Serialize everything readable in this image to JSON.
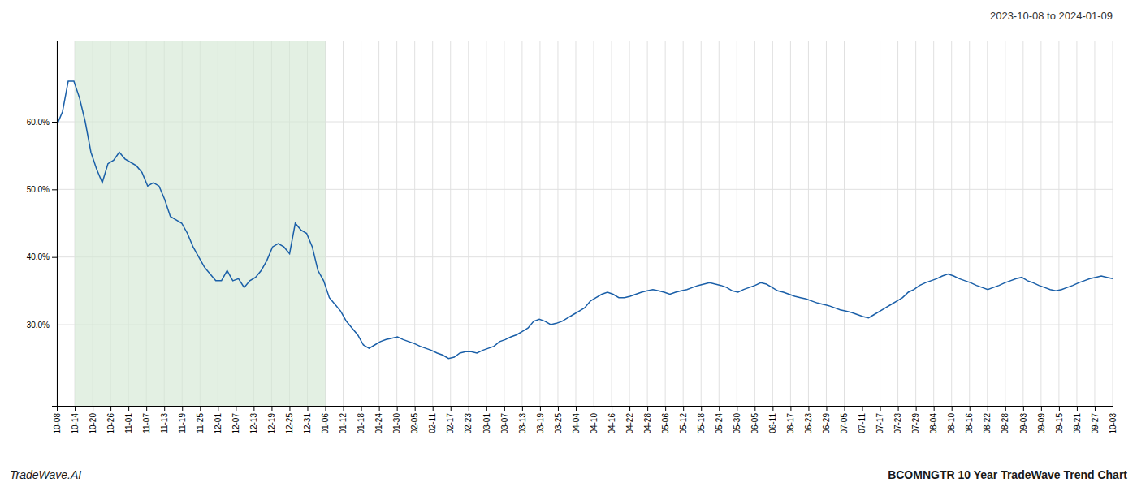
{
  "chart_data": {
    "type": "line",
    "title": "2023-10-08 to 2024-01-09",
    "annotations": [
      "TradeWave.AI",
      "BCOMNGTR 10 Year TradeWave Trend Chart"
    ],
    "color": "#1a5fa8",
    "grid": true,
    "highlight": {
      "x": [
        3.1525,
        47.2881
      ],
      "color": "#d4e8d4"
    },
    "ylim": [
      0.18,
      0.72
    ],
    "yticks": [
      {
        "value": 0.3,
        "label": "30.0%"
      },
      {
        "value": 0.4,
        "label": "40.0%"
      },
      {
        "value": 0.5,
        "label": "50.0%"
      },
      {
        "value": 0.6,
        "label": "60.0%"
      }
    ],
    "xlim": [
      0,
      186
    ],
    "xticks": [
      {
        "value": 0,
        "label": "10-08"
      },
      {
        "value": 3.1525,
        "label": "10-14"
      },
      {
        "value": 6.3051,
        "label": "10-20"
      },
      {
        "value": 9.4576,
        "label": "10-26"
      },
      {
        "value": 12.6102,
        "label": "11-01"
      },
      {
        "value": 15.7627,
        "label": "11-07"
      },
      {
        "value": 18.9153,
        "label": "11-13"
      },
      {
        "value": 22.0678,
        "label": "11-19"
      },
      {
        "value": 25.2203,
        "label": "11-25"
      },
      {
        "value": 28.3729,
        "label": "12-01"
      },
      {
        "value": 31.5254,
        "label": "12-07"
      },
      {
        "value": 34.678,
        "label": "12-13"
      },
      {
        "value": 37.8305,
        "label": "12-19"
      },
      {
        "value": 40.9831,
        "label": "12-25"
      },
      {
        "value": 44.1356,
        "label": "12-31"
      },
      {
        "value": 47.2881,
        "label": "01-06"
      },
      {
        "value": 50.4407,
        "label": "01-12"
      },
      {
        "value": 53.5932,
        "label": "01-18"
      },
      {
        "value": 56.7458,
        "label": "01-24"
      },
      {
        "value": 59.8983,
        "label": "01-30"
      },
      {
        "value": 63.0508,
        "label": "02-05"
      },
      {
        "value": 66.2034,
        "label": "02-11"
      },
      {
        "value": 69.3559,
        "label": "02-17"
      },
      {
        "value": 72.5085,
        "label": "02-23"
      },
      {
        "value": 75.661,
        "label": "03-01"
      },
      {
        "value": 78.8136,
        "label": "03-07"
      },
      {
        "value": 81.9661,
        "label": "03-13"
      },
      {
        "value": 85.1186,
        "label": "03-19"
      },
      {
        "value": 88.2712,
        "label": "03-25"
      },
      {
        "value": 91.4237,
        "label": "04-04"
      },
      {
        "value": 94.5763,
        "label": "04-10"
      },
      {
        "value": 97.7288,
        "label": "04-16"
      },
      {
        "value": 100.8814,
        "label": "04-22"
      },
      {
        "value": 104.0339,
        "label": "04-28"
      },
      {
        "value": 107.1864,
        "label": "05-06"
      },
      {
        "value": 110.339,
        "label": "05-12"
      },
      {
        "value": 113.4915,
        "label": "05-18"
      },
      {
        "value": 116.6441,
        "label": "05-24"
      },
      {
        "value": 119.7966,
        "label": "05-30"
      },
      {
        "value": 122.9492,
        "label": "06-05"
      },
      {
        "value": 126.1017,
        "label": "06-11"
      },
      {
        "value": 129.2542,
        "label": "06-17"
      },
      {
        "value": 132.4068,
        "label": "06-23"
      },
      {
        "value": 135.5593,
        "label": "06-29"
      },
      {
        "value": 138.7119,
        "label": "07-05"
      },
      {
        "value": 141.8644,
        "label": "07-11"
      },
      {
        "value": 145.0169,
        "label": "07-17"
      },
      {
        "value": 148.1695,
        "label": "07-23"
      },
      {
        "value": 151.322,
        "label": "07-29"
      },
      {
        "value": 154.4746,
        "label": "08-04"
      },
      {
        "value": 157.6271,
        "label": "08-10"
      },
      {
        "value": 160.7797,
        "label": "08-16"
      },
      {
        "value": 163.9322,
        "label": "08-22"
      },
      {
        "value": 167.0847,
        "label": "08-28"
      },
      {
        "value": 170.2373,
        "label": "09-03"
      },
      {
        "value": 173.3898,
        "label": "09-09"
      },
      {
        "value": 176.5424,
        "label": "09-15"
      },
      {
        "value": 179.6949,
        "label": "09-21"
      },
      {
        "value": 182.8475,
        "label": "09-27"
      },
      {
        "value": 186,
        "label": "10-03"
      }
    ],
    "values": [
      0.595,
      0.615,
      0.66,
      0.66,
      0.635,
      0.6,
      0.555,
      0.53,
      0.51,
      0.538,
      0.543,
      0.555,
      0.545,
      0.54,
      0.535,
      0.525,
      0.505,
      0.51,
      0.505,
      0.485,
      0.46,
      0.455,
      0.45,
      0.435,
      0.415,
      0.4,
      0.385,
      0.375,
      0.365,
      0.365,
      0.38,
      0.365,
      0.368,
      0.355,
      0.365,
      0.37,
      0.38,
      0.395,
      0.415,
      0.42,
      0.415,
      0.405,
      0.45,
      0.44,
      0.435,
      0.415,
      0.38,
      0.365,
      0.34,
      0.33,
      0.32,
      0.305,
      0.295,
      0.285,
      0.27,
      0.265,
      0.27,
      0.275,
      0.278,
      0.28,
      0.282,
      0.278,
      0.275,
      0.272,
      0.268,
      0.265,
      0.262,
      0.258,
      0.255,
      0.25,
      0.252,
      0.258,
      0.26,
      0.26,
      0.258,
      0.262,
      0.265,
      0.268,
      0.275,
      0.278,
      0.282,
      0.285,
      0.29,
      0.295,
      0.305,
      0.308,
      0.305,
      0.3,
      0.302,
      0.305,
      0.31,
      0.315,
      0.32,
      0.325,
      0.335,
      0.34,
      0.345,
      0.348,
      0.345,
      0.34,
      0.34,
      0.342,
      0.345,
      0.348,
      0.35,
      0.352,
      0.35,
      0.348,
      0.345,
      0.348,
      0.35,
      0.352,
      0.355,
      0.358,
      0.36,
      0.362,
      0.36,
      0.358,
      0.355,
      0.35,
      0.348,
      0.352,
      0.355,
      0.358,
      0.362,
      0.36,
      0.355,
      0.35,
      0.348,
      0.345,
      0.342,
      0.34,
      0.338,
      0.335,
      0.332,
      0.33,
      0.328,
      0.325,
      0.322,
      0.32,
      0.318,
      0.315,
      0.312,
      0.31,
      0.315,
      0.32,
      0.325,
      0.33,
      0.335,
      0.34,
      0.348,
      0.352,
      0.358,
      0.362,
      0.365,
      0.368,
      0.372,
      0.375,
      0.372,
      0.368,
      0.365,
      0.362,
      0.358,
      0.355,
      0.352,
      0.355,
      0.358,
      0.362,
      0.365,
      0.368,
      0.37,
      0.365,
      0.362,
      0.358,
      0.355,
      0.352,
      0.35,
      0.352,
      0.355,
      0.358,
      0.362,
      0.365,
      0.368,
      0.37,
      0.372,
      0.37,
      0.368
    ]
  }
}
